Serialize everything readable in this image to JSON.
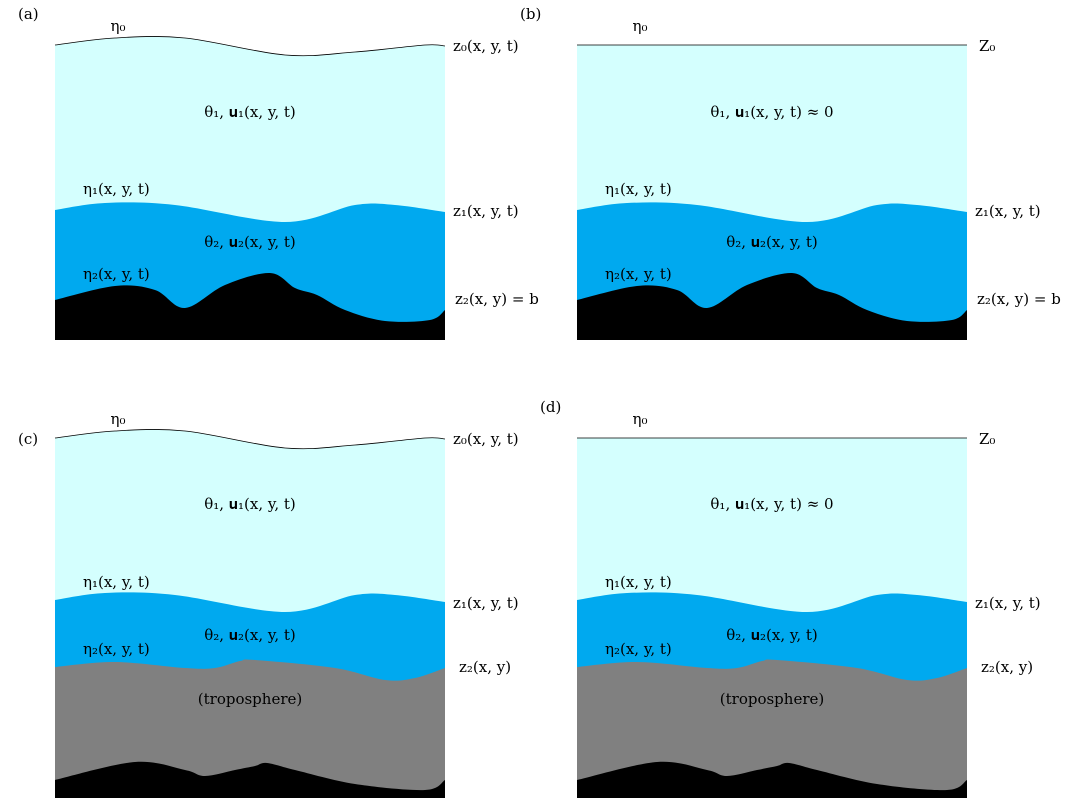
{
  "panels": [
    {
      "label": "(a)",
      "surface_label": "η₀",
      "surface": "z₀(x, y, t)",
      "upper_layer": "θ₁, 𝐮₁(x, y, t)",
      "interface_1_label": "η₁(x, y, t)",
      "interface_1": "z₁(x, y, t)",
      "lower_layer": "θ₂, 𝐮₂(x, y, t)",
      "interface_2_label": "η₂(x, y, t)",
      "interface_2": "z₂(x, y) = b"
    },
    {
      "label": "(b)",
      "surface_label": "η₀",
      "surface": "Z₀",
      "upper_layer": "θ₁, 𝐮₁(x, y, t) ≈ 0",
      "interface_1_label": "η₁(x, y, t)",
      "interface_1": "z₁(x, y, t)",
      "lower_layer": "θ₂, 𝐮₂(x, y, t)",
      "interface_2_label": "η₂(x, y, t)",
      "interface_2": "z₂(x, y) = b"
    },
    {
      "label": "(c)",
      "surface_label": "η₀",
      "surface": "z₀(x, y, t)",
      "upper_layer": "θ₁, 𝐮₁(x, y, t)",
      "interface_1_label": "η₁(x, y, t)",
      "interface_1": "z₁(x, y, t)",
      "lower_layer": "θ₂, 𝐮₂(x, y, t)",
      "interface_2_label": "η₂(x, y, t)",
      "interface_2": "z₂(x, y)",
      "troposphere": "(troposphere)"
    },
    {
      "label": "(d)",
      "surface_label": "η₀",
      "surface": "Z₀",
      "upper_layer": "θ₁, 𝐮₁(x, y, t) ≈ 0",
      "interface_1_label": "η₁(x, y, t)",
      "interface_1": "z₁(x, y, t)",
      "lower_layer": "θ₂, 𝐮₂(x, y, t)",
      "interface_2_label": "η₂(x, y, t)",
      "interface_2": "z₂(x, y)",
      "troposphere": "(troposphere)"
    }
  ]
}
